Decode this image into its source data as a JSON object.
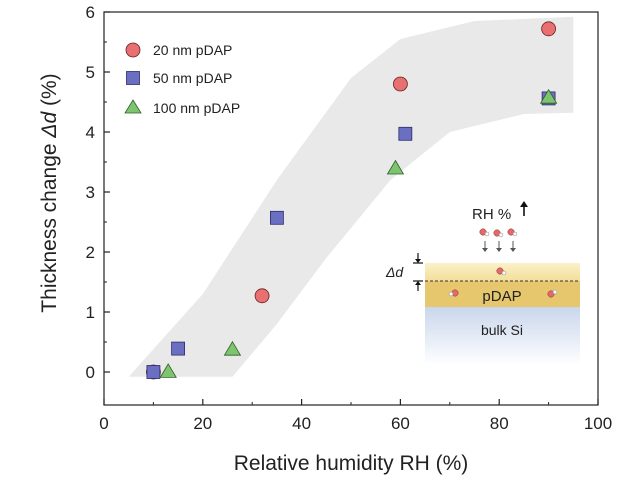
{
  "chart_data": {
    "type": "scatter",
    "xlabel": "Relative humidity RH (%)",
    "ylabel_prefix": "Thickness change ",
    "ylabel_symbol": "Δd",
    "ylabel_suffix": " (%)",
    "xlim": [
      0,
      100
    ],
    "ylim": [
      -0.55,
      6
    ],
    "xticks": [
      0,
      20,
      40,
      60,
      80,
      100
    ],
    "yticks": [
      0,
      1,
      2,
      3,
      4,
      5,
      6
    ],
    "legend_position": "top-left",
    "series": [
      {
        "name": "20 nm pDAP",
        "marker": "circle",
        "color": "#e87070",
        "points": [
          [
            10,
            0
          ],
          [
            32,
            1.27
          ],
          [
            60,
            4.8
          ],
          [
            90,
            5.72
          ]
        ]
      },
      {
        "name": "50 nm pDAP",
        "marker": "square",
        "color": "#6a6fc2",
        "points": [
          [
            10,
            0
          ],
          [
            15,
            0.39
          ],
          [
            35,
            2.57
          ],
          [
            61,
            3.97
          ],
          [
            90,
            4.56
          ]
        ]
      },
      {
        "name": "100 nm pDAP",
        "marker": "triangle",
        "color": "#7cc46e",
        "points": [
          [
            13,
            0.01
          ],
          [
            26,
            0.38
          ],
          [
            59,
            3.4
          ],
          [
            90,
            4.58
          ]
        ]
      }
    ],
    "band": {
      "upper": [
        [
          5,
          -0.08
        ],
        [
          20,
          1.3
        ],
        [
          35,
          3.2
        ],
        [
          50,
          4.9
        ],
        [
          60,
          5.55
        ],
        [
          75,
          5.85
        ],
        [
          95,
          5.92
        ]
      ],
      "lower": [
        [
          95,
          4.32
        ],
        [
          85,
          4.3
        ],
        [
          70,
          4.0
        ],
        [
          58,
          3.2
        ],
        [
          45,
          1.9
        ],
        [
          35,
          0.8
        ],
        [
          26,
          -0.08
        ]
      ]
    },
    "inset": {
      "title": "RH %",
      "delta_label": "Δd",
      "layer_label": "pDAP",
      "substrate_label": "bulk Si"
    }
  }
}
